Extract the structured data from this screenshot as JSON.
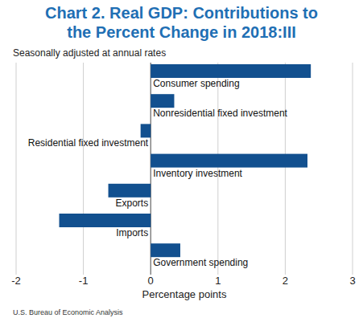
{
  "chart_data": {
    "type": "bar",
    "orientation": "horizontal",
    "title": "Chart 2. Real GDP: Contributions to the Percent Change in 2018:III",
    "subtitle": "Seasonally adjusted at annual rates",
    "xlabel": "Percentage points",
    "annotations": [
      "U.S. Bureau of Economic Analysis"
    ],
    "categories": [
      "Consumer spending",
      "Nonresidential fixed investment",
      "Residential fixed investment",
      "Inventory investment",
      "Exports",
      "Imports",
      "Government spending"
    ],
    "values": [
      2.38,
      0.35,
      -0.15,
      2.33,
      -0.63,
      -1.36,
      0.44
    ],
    "color": "#12508f",
    "xlim": [
      -2,
      3
    ],
    "xticks": [
      -2,
      -1,
      0,
      1,
      2,
      3
    ],
    "grid": true
  }
}
